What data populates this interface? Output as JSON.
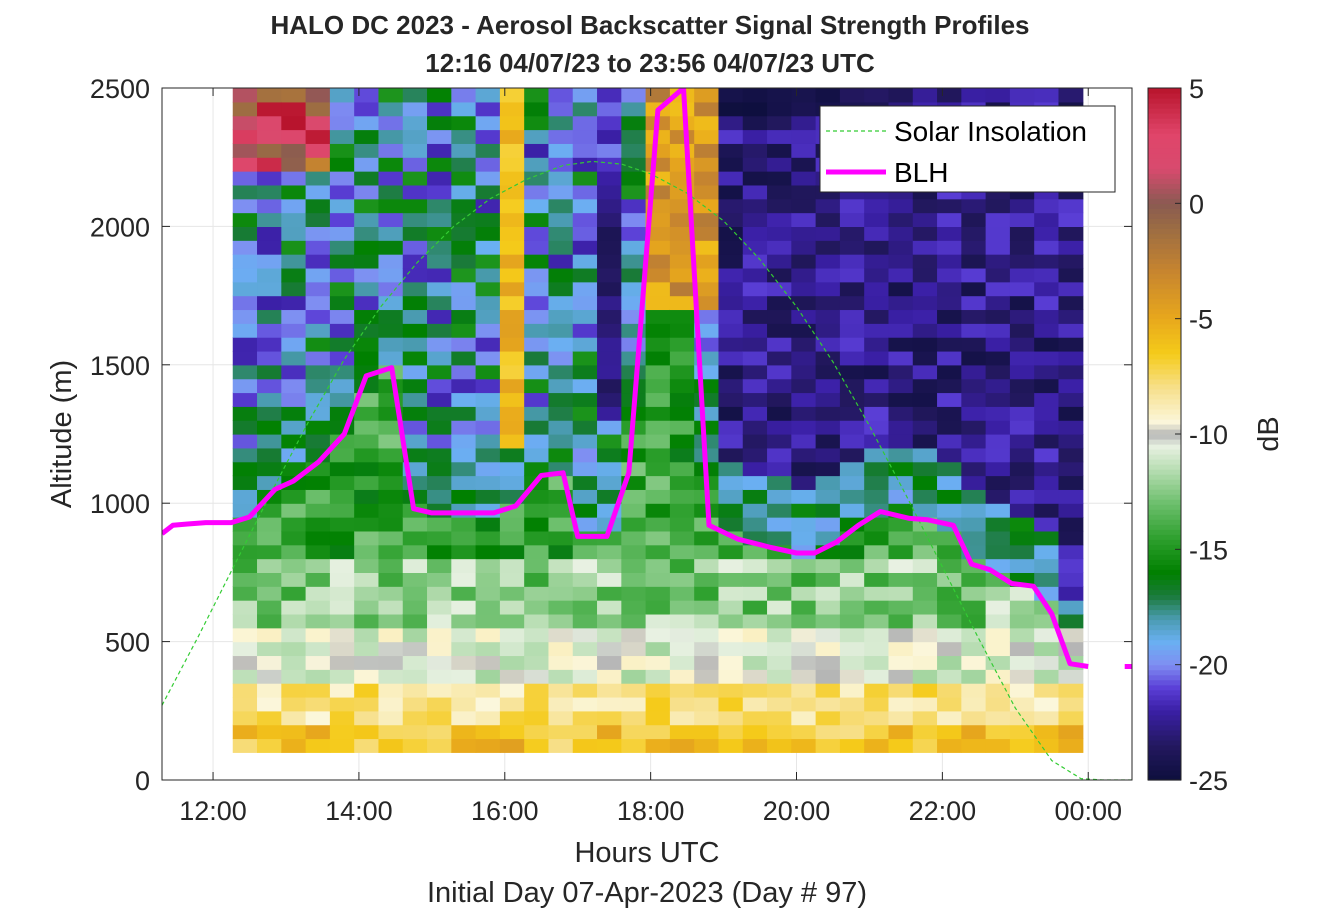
{
  "chart_data": {
    "type": "heatmap",
    "title_line1": "HALO DC 2023 - Aerosol Backscatter Signal Strength Profiles",
    "title_line2": "12:16 04/07/23 to 23:56 04/07/23  UTC",
    "xlabel": "Hours UTC",
    "xlabel2": "Initial Day 07-Apr-2023 (Day # 97)",
    "ylabel": "Altitude (m)",
    "colorbar_label": "dB",
    "xlim_hours": [
      11.3,
      24.6
    ],
    "ylim": [
      0,
      2500
    ],
    "x_ticks": [
      {
        "value": 12,
        "label": "12:00"
      },
      {
        "value": 14,
        "label": "14:00"
      },
      {
        "value": 16,
        "label": "16:00"
      },
      {
        "value": 18,
        "label": "18:00"
      },
      {
        "value": 20,
        "label": "20:00"
      },
      {
        "value": 22,
        "label": "22:00"
      },
      {
        "value": 24,
        "label": "00:00"
      }
    ],
    "y_ticks": [
      {
        "value": 0,
        "label": "0"
      },
      {
        "value": 500,
        "label": "500"
      },
      {
        "value": 1000,
        "label": "1000"
      },
      {
        "value": 1500,
        "label": "1500"
      },
      {
        "value": 2000,
        "label": "2000"
      },
      {
        "value": 2500,
        "label": "2500"
      }
    ],
    "colorbar": {
      "range": [
        -25,
        5
      ],
      "ticks": [
        {
          "value": 5,
          "label": "5"
        },
        {
          "value": 0,
          "label": "0"
        },
        {
          "value": -5,
          "label": "-5"
        },
        {
          "value": -10,
          "label": "-10"
        },
        {
          "value": -15,
          "label": "-15"
        },
        {
          "value": -20,
          "label": "-20"
        },
        {
          "value": -25,
          "label": "-25"
        }
      ],
      "colors": [
        {
          "value": -25,
          "color": "#0d0f3d"
        },
        {
          "value": -23.5,
          "color": "#23185f"
        },
        {
          "value": -22,
          "color": "#3a1fa5"
        },
        {
          "value": -21,
          "color": "#5a3ed6"
        },
        {
          "value": -20,
          "color": "#7f8ef2"
        },
        {
          "value": -19,
          "color": "#6ab0f2"
        },
        {
          "value": -18,
          "color": "#4a9bb0"
        },
        {
          "value": -17,
          "color": "#1a7a3a"
        },
        {
          "value": -16,
          "color": "#008000"
        },
        {
          "value": -14.5,
          "color": "#2ea02e"
        },
        {
          "value": -13,
          "color": "#6cbf6c"
        },
        {
          "value": -11.5,
          "color": "#b9deb4"
        },
        {
          "value": -10.5,
          "color": "#e8f1e2"
        },
        {
          "value": -10,
          "color": "#b4b4b4"
        },
        {
          "value": -9.5,
          "color": "#fbf7dc"
        },
        {
          "value": -8,
          "color": "#f7e08c"
        },
        {
          "value": -6.5,
          "color": "#f5cb1a"
        },
        {
          "value": -5,
          "color": "#e8a81c"
        },
        {
          "value": -3,
          "color": "#c8862e"
        },
        {
          "value": -1,
          "color": "#9a6b44"
        },
        {
          "value": 0,
          "color": "#8a5a52"
        },
        {
          "value": 1.5,
          "color": "#d84a6e"
        },
        {
          "value": 3,
          "color": "#e0456a"
        },
        {
          "value": 5,
          "color": "#b8142c"
        }
      ]
    },
    "heatmap": {
      "time_start_hours": 12.27,
      "time_step_hours": 0.333,
      "alt_start_m": 100,
      "alt_step_m": 50,
      "n_times": 35,
      "n_alts": 48,
      "description_of_values": "backscatter signal strength in dB"
    },
    "series": [
      {
        "name": "Solar Insolation",
        "style": "dashed",
        "color": "#33cc33",
        "x": [
          11.3,
          11.8,
          12.3,
          12.8,
          13.3,
          13.8,
          14.3,
          14.8,
          15.3,
          15.8,
          16.3,
          16.8,
          17.2,
          17.6,
          18.0,
          18.5,
          19.0,
          19.5,
          20.0,
          20.5,
          21.0,
          21.5,
          22.0,
          22.5,
          23.0,
          23.5,
          23.9,
          24.2,
          24.6
        ],
        "y": [
          270,
          520,
          780,
          1040,
          1290,
          1520,
          1710,
          1870,
          2000,
          2100,
          2170,
          2220,
          2235,
          2225,
          2190,
          2120,
          2020,
          1880,
          1710,
          1510,
          1280,
          1030,
          770,
          510,
          260,
          70,
          5,
          0,
          0
        ]
      },
      {
        "name": "BLH",
        "style": "solid",
        "color": "#ff00ff",
        "x": [
          11.3,
          11.45,
          11.65,
          11.9,
          12.25,
          12.5,
          12.85,
          13.1,
          13.45,
          13.8,
          14.1,
          14.45,
          14.75,
          15.0,
          15.4,
          15.85,
          16.15,
          16.5,
          16.8,
          17.0,
          17.4,
          17.7,
          18.1,
          18.45,
          18.8,
          19.2,
          19.65,
          20.0,
          20.25,
          20.55,
          20.85,
          21.15,
          21.55,
          21.8,
          22.15,
          22.4,
          22.65,
          22.95,
          23.25,
          23.5,
          23.75,
          24.0
        ],
        "y": [
          890,
          920,
          925,
          930,
          930,
          950,
          1050,
          1080,
          1150,
          1250,
          1460,
          1490,
          980,
          965,
          965,
          965,
          990,
          1100,
          1110,
          880,
          880,
          1110,
          2420,
          2500,
          920,
          870,
          840,
          820,
          820,
          860,
          920,
          970,
          945,
          940,
          920,
          780,
          760,
          710,
          700,
          600,
          420,
          410
        ]
      }
    ],
    "legend": {
      "placement": "top-right",
      "entries": [
        "Solar Insolation",
        "BLH"
      ]
    }
  }
}
